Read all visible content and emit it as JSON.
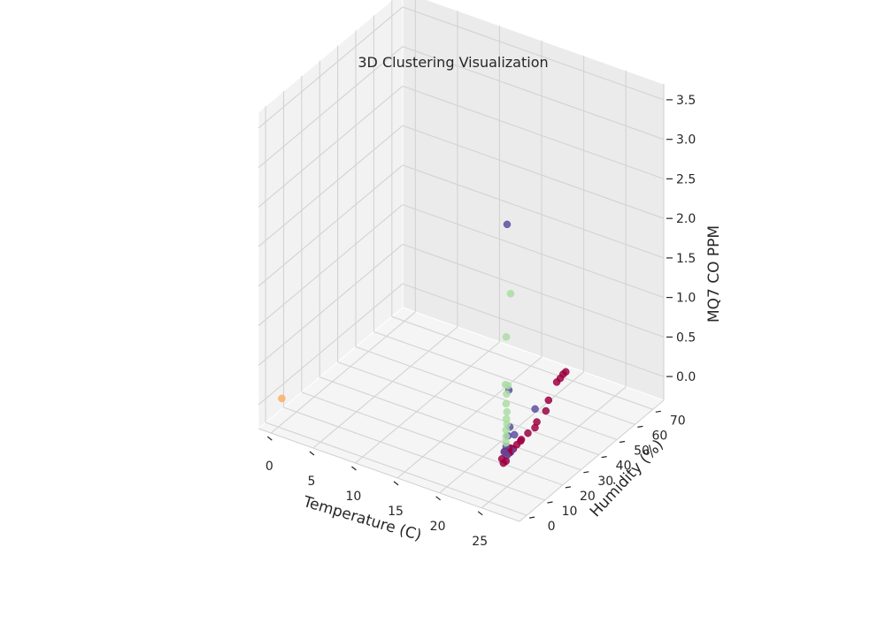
{
  "chart_data": {
    "type": "scatter",
    "title": "3D Clustering Visualization",
    "xlabel": "Temperature (C)",
    "ylabel": "Humidity (%)",
    "zlabel": "MQ7 CO PPM",
    "xticks": [
      "0",
      "5",
      "10",
      "15",
      "20",
      "25"
    ],
    "yticks": [
      "0",
      "10",
      "20",
      "30",
      "40",
      "50",
      "60",
      "70"
    ],
    "zticks": [
      "0.0",
      "0.5",
      "1.0",
      "1.5",
      "2.0",
      "2.5",
      "3.0",
      "3.5"
    ],
    "xlim": [
      -1.5,
      29.5
    ],
    "ylim": [
      -4,
      76
    ],
    "zlim": [
      -0.3,
      3.7
    ],
    "grid": true,
    "colors": {
      "pane_left": "#f2f2f2",
      "pane_back": "#ebebeb",
      "pane_floor": "#f5f5f5",
      "cluster_0": "#9e0142",
      "cluster_1": "#5e4fa2",
      "cluster_2": "#abdda4",
      "cluster_3": "#fdae61"
    },
    "series": [
      {
        "cluster": 0,
        "points": [
          {
            "x": 24.6,
            "y": 10.5,
            "z": 0.12
          },
          {
            "x": 24.7,
            "y": 11.0,
            "z": 0.1
          },
          {
            "x": 24.5,
            "y": 11.8,
            "z": 0.08
          },
          {
            "x": 24.8,
            "y": 12.2,
            "z": 0.14
          },
          {
            "x": 24.6,
            "y": 12.8,
            "z": 0.05
          },
          {
            "x": 24.9,
            "y": 10.0,
            "z": 0.02
          },
          {
            "x": 24.7,
            "y": 13.5,
            "z": 0.06
          },
          {
            "x": 24.5,
            "y": 9.6,
            "z": 0.04
          },
          {
            "x": 24.8,
            "y": 9.0,
            "z": 0.01
          },
          {
            "x": 24.6,
            "y": 14.2,
            "z": 0.09
          },
          {
            "x": 24.9,
            "y": 11.5,
            "z": 0.11
          },
          {
            "x": 24.7,
            "y": 15.0,
            "z": 0.07
          },
          {
            "x": 24.8,
            "y": 16.5,
            "z": 0.1
          },
          {
            "x": 24.9,
            "y": 18.5,
            "z": 0.13
          },
          {
            "x": 24.6,
            "y": 19.5,
            "z": 0.08
          },
          {
            "x": 24.5,
            "y": 24.0,
            "z": 0.09
          },
          {
            "x": 24.7,
            "y": 27.0,
            "z": 0.11
          },
          {
            "x": 24.6,
            "y": 28.5,
            "z": 0.15
          },
          {
            "x": 24.5,
            "y": 34.0,
            "z": 0.18
          },
          {
            "x": 24.6,
            "y": 35.0,
            "z": 0.3
          },
          {
            "x": 24.5,
            "y": 40.0,
            "z": 0.43
          },
          {
            "x": 24.5,
            "y": 42.0,
            "z": 0.44
          },
          {
            "x": 24.4,
            "y": 44.0,
            "z": 0.45
          },
          {
            "x": 24.4,
            "y": 45.5,
            "z": 0.45
          }
        ]
      },
      {
        "cluster": 1,
        "points": [
          {
            "x": 24.9,
            "y": 10.5,
            "z": 0.08
          },
          {
            "x": 24.8,
            "y": 9.5,
            "z": 0.14
          },
          {
            "x": 24.7,
            "y": 11.0,
            "z": 0.18
          },
          {
            "x": 24.6,
            "y": 12.5,
            "z": 0.28
          },
          {
            "x": 24.9,
            "y": 13.0,
            "z": 0.1
          },
          {
            "x": 24.5,
            "y": 14.0,
            "z": 0.36
          },
          {
            "x": 24.4,
            "y": 17.0,
            "z": 0.2
          },
          {
            "x": 24.5,
            "y": 28.0,
            "z": 0.32
          },
          {
            "x": 24.6,
            "y": 13.0,
            "z": 0.85
          },
          {
            "x": 24.5,
            "y": 12.5,
            "z": 2.95
          }
        ]
      },
      {
        "cluster": 2,
        "points": [
          {
            "x": 24.9,
            "y": 10.0,
            "z": 0.25
          },
          {
            "x": 24.8,
            "y": 10.5,
            "z": 0.32
          },
          {
            "x": 24.8,
            "y": 10.5,
            "z": 0.4
          },
          {
            "x": 24.9,
            "y": 10.5,
            "z": 0.48
          },
          {
            "x": 24.9,
            "y": 10.2,
            "z": 0.55
          },
          {
            "x": 24.8,
            "y": 11.0,
            "z": 0.62
          },
          {
            "x": 24.7,
            "y": 11.0,
            "z": 0.72
          },
          {
            "x": 24.8,
            "y": 10.8,
            "z": 0.85
          },
          {
            "x": 24.7,
            "y": 12.0,
            "z": 0.93
          },
          {
            "x": 24.4,
            "y": 12.0,
            "z": 0.93
          },
          {
            "x": 24.6,
            "y": 11.5,
            "z": 1.55
          },
          {
            "x": 24.6,
            "y": 14.0,
            "z": 2.05
          }
        ]
      },
      {
        "cluster": 3,
        "points": [
          {
            "x": 0.2,
            "y": 1.0,
            "z": 0.05
          }
        ]
      }
    ]
  }
}
